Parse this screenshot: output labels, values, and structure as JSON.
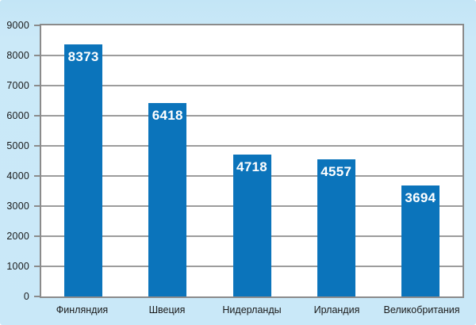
{
  "chart_data": {
    "type": "bar",
    "title": "",
    "xlabel": "",
    "ylabel": "",
    "categories": [
      "Финляндия",
      "Швеция",
      "Нидерланды",
      "Ирландия",
      "Великобритания"
    ],
    "values": [
      8373,
      6418,
      4718,
      4557,
      3694
    ],
    "value_labels": [
      "8373",
      "6418",
      "4718",
      "4557",
      "3694"
    ],
    "ylim": [
      0,
      9000
    ],
    "yticks": [
      0,
      1000,
      2000,
      3000,
      4000,
      5000,
      6000,
      7000,
      8000,
      9000
    ],
    "ytick_labels": [
      "0",
      "1000",
      "2000",
      "3000",
      "4000",
      "5000",
      "6000",
      "7000",
      "8000",
      "9000"
    ],
    "grid": "horizontal",
    "legend": "none",
    "colors": {
      "bar": "#0b74bb",
      "value_label": "#ffffff",
      "figure_background": "#c9e8f8",
      "plot_background": "#ffffff",
      "gridline": "#9c9c9c",
      "frame": "#8b8b8b",
      "axis_text": "#1a1a1a"
    }
  }
}
